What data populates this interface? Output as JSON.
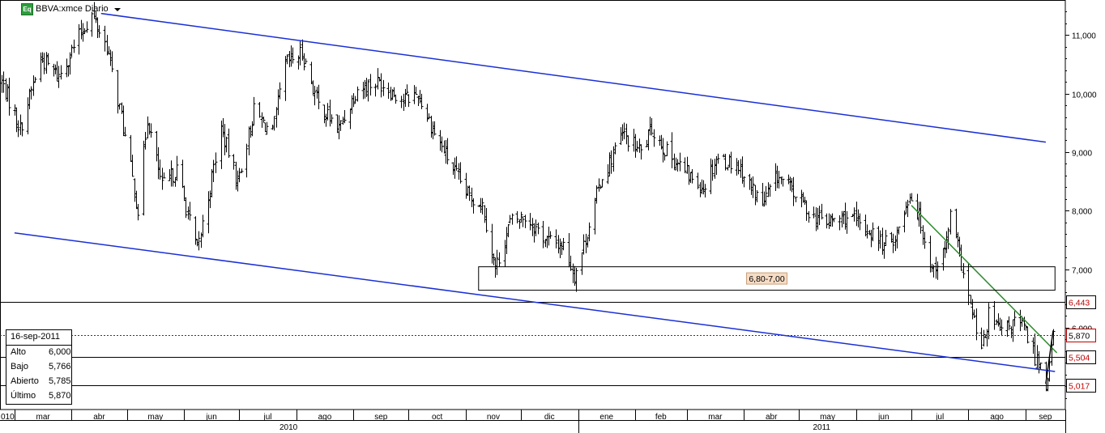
{
  "header": {
    "icon_label": "Eq",
    "title": "BBVA:xmce Diario"
  },
  "chart_data": {
    "type": "ohlc",
    "ylim": [
      4.6,
      11.6
    ],
    "y_ticks": [
      "11,000",
      "10,000",
      "9,000",
      "8,000",
      "7,000",
      "6,000"
    ],
    "y_tick_values": [
      11,
      10,
      9,
      8,
      7,
      6
    ],
    "x_start": "2010-02-22",
    "x_end": "2011-09-16",
    "months": [
      {
        "label": "010",
        "date": "2010-02-01"
      },
      {
        "label": "mar",
        "date": "2010-03-01"
      },
      {
        "label": "abr",
        "date": "2010-04-01"
      },
      {
        "label": "may",
        "date": "2010-05-01"
      },
      {
        "label": "jun",
        "date": "2010-06-01"
      },
      {
        "label": "jul",
        "date": "2010-07-01"
      },
      {
        "label": "ago",
        "date": "2010-08-01"
      },
      {
        "label": "sep",
        "date": "2010-09-01"
      },
      {
        "label": "oct",
        "date": "2010-10-01"
      },
      {
        "label": "nov",
        "date": "2010-11-01"
      },
      {
        "label": "dic",
        "date": "2010-12-01"
      },
      {
        "label": "ene",
        "date": "2011-01-01"
      },
      {
        "label": "feb",
        "date": "2011-02-01"
      },
      {
        "label": "mar",
        "date": "2011-03-01"
      },
      {
        "label": "abr",
        "date": "2011-04-01"
      },
      {
        "label": "may",
        "date": "2011-05-01"
      },
      {
        "label": "jun",
        "date": "2011-06-01"
      },
      {
        "label": "jul",
        "date": "2011-07-01"
      },
      {
        "label": "ago",
        "date": "2011-08-01"
      },
      {
        "label": "sep",
        "date": "2011-09-01"
      }
    ],
    "years": [
      {
        "label": "2010",
        "start": "2010-02-01",
        "end": "2010-12-31"
      },
      {
        "label": "2011",
        "start": "2011-01-01",
        "end": "2011-09-30"
      }
    ],
    "close_path": [
      [
        "2010-02-22",
        10.2
      ],
      [
        "2010-03-04",
        9.4
      ],
      [
        "2010-03-15",
        10.6
      ],
      [
        "2010-03-25",
        10.3
      ],
      [
        "2010-04-07",
        11.1
      ],
      [
        "2010-04-12",
        11.35
      ],
      [
        "2010-04-20",
        10.8
      ],
      [
        "2010-04-28",
        9.6
      ],
      [
        "2010-05-07",
        8.0
      ],
      [
        "2010-05-12",
        9.6
      ],
      [
        "2010-05-20",
        8.4
      ],
      [
        "2010-05-28",
        8.7
      ],
      [
        "2010-06-08",
        7.3
      ],
      [
        "2010-06-15",
        8.4
      ],
      [
        "2010-06-21",
        9.4
      ],
      [
        "2010-06-30",
        8.5
      ],
      [
        "2010-07-09",
        9.7
      ],
      [
        "2010-07-19",
        9.3
      ],
      [
        "2010-07-26",
        10.5
      ],
      [
        "2010-08-04",
        10.7
      ],
      [
        "2010-08-13",
        9.8
      ],
      [
        "2010-08-24",
        9.4
      ],
      [
        "2010-09-03",
        10.1
      ],
      [
        "2010-09-15",
        10.2
      ],
      [
        "2010-09-28",
        9.9
      ],
      [
        "2010-10-06",
        10.0
      ],
      [
        "2010-10-14",
        9.4
      ],
      [
        "2010-10-22",
        8.9
      ],
      [
        "2010-11-01",
        8.3
      ],
      [
        "2010-11-10",
        8.1
      ],
      [
        "2010-11-17",
        7.0
      ],
      [
        "2010-11-25",
        7.8
      ],
      [
        "2010-12-03",
        7.9
      ],
      [
        "2010-12-15",
        7.5
      ],
      [
        "2010-12-24",
        7.4
      ],
      [
        "2010-12-30",
        6.9
      ],
      [
        "2011-01-04",
        7.4
      ],
      [
        "2011-01-13",
        8.5
      ],
      [
        "2011-01-25",
        9.3
      ],
      [
        "2011-02-04",
        9.0
      ],
      [
        "2011-02-10",
        9.4
      ],
      [
        "2011-02-18",
        9.0
      ],
      [
        "2011-03-02",
        8.6
      ],
      [
        "2011-03-10",
        8.4
      ],
      [
        "2011-03-17",
        8.9
      ],
      [
        "2011-03-28",
        8.8
      ],
      [
        "2011-04-05",
        8.4
      ],
      [
        "2011-04-11",
        8.1
      ],
      [
        "2011-04-19",
        8.6
      ],
      [
        "2011-04-28",
        8.3
      ],
      [
        "2011-05-09",
        7.9
      ],
      [
        "2011-05-17",
        7.8
      ],
      [
        "2011-05-27",
        7.9
      ],
      [
        "2011-06-10",
        7.6
      ],
      [
        "2011-06-16",
        7.4
      ],
      [
        "2011-06-23",
        7.6
      ],
      [
        "2011-06-30",
        8.3
      ],
      [
        "2011-07-05",
        7.9
      ],
      [
        "2011-07-12",
        7.0
      ],
      [
        "2011-07-19",
        7.3
      ],
      [
        "2011-07-22",
        7.9
      ],
      [
        "2011-07-28",
        7.1
      ],
      [
        "2011-08-03",
        6.2
      ],
      [
        "2011-08-08",
        5.6
      ],
      [
        "2011-08-12",
        6.2
      ],
      [
        "2011-08-19",
        5.9
      ],
      [
        "2011-08-26",
        6.1
      ],
      [
        "2011-08-31",
        6.0
      ],
      [
        "2011-09-06",
        5.5
      ],
      [
        "2011-09-09",
        5.4
      ],
      [
        "2011-09-12",
        5.02
      ],
      [
        "2011-09-14",
        5.4
      ],
      [
        "2011-09-16",
        5.87
      ]
    ],
    "range_amplitude": 0.28,
    "annotations": [
      {
        "type": "trendline",
        "color": "#1a2fd4",
        "start": [
          "2010-04-17",
          11.37
        ],
        "end": [
          "2011-09-12",
          9.17
        ]
      },
      {
        "type": "trendline",
        "color": "#1a2fd4",
        "start": [
          "2010-03-01",
          7.62
        ],
        "end": [
          "2011-09-17",
          5.25
        ]
      },
      {
        "type": "trendline",
        "color": "#2a8a2a",
        "start": [
          "2011-07-01",
          8.09
        ],
        "end": [
          "2011-09-18",
          5.57
        ]
      },
      {
        "type": "trendline",
        "color": "#000000",
        "start": [
          "2011-09-12",
          5.04
        ],
        "end": [
          "2011-09-16",
          5.95
        ]
      },
      {
        "type": "zone",
        "label": "6,80-7,00",
        "label_bg": "#f6dcc4",
        "from": "2010-11-08",
        "to": "2011-09-17",
        "low": 6.64,
        "high": 7.04
      }
    ],
    "levels": [
      {
        "value": 6.443,
        "label": "6,443",
        "color": "#000000",
        "text_color": "#c00000",
        "dotted": false
      },
      {
        "value": 5.87,
        "label": "5,870",
        "color": "#c00000",
        "text_color": "#000000",
        "dotted": true
      },
      {
        "value": 5.504,
        "label": "5,504",
        "color": "#000000",
        "text_color": "#c00000",
        "dotted": false
      },
      {
        "value": 5.017,
        "label": "5,017",
        "color": "#000000",
        "text_color": "#c00000",
        "dotted": false
      }
    ]
  },
  "info_panel": {
    "date": "16-sep-2011",
    "rows": [
      {
        "key": "Alto",
        "value": "6,000"
      },
      {
        "key": "Bajo",
        "value": "5,766"
      },
      {
        "key": "Abierto",
        "value": "5,785"
      },
      {
        "key": "Último",
        "value": "5,870"
      }
    ]
  }
}
